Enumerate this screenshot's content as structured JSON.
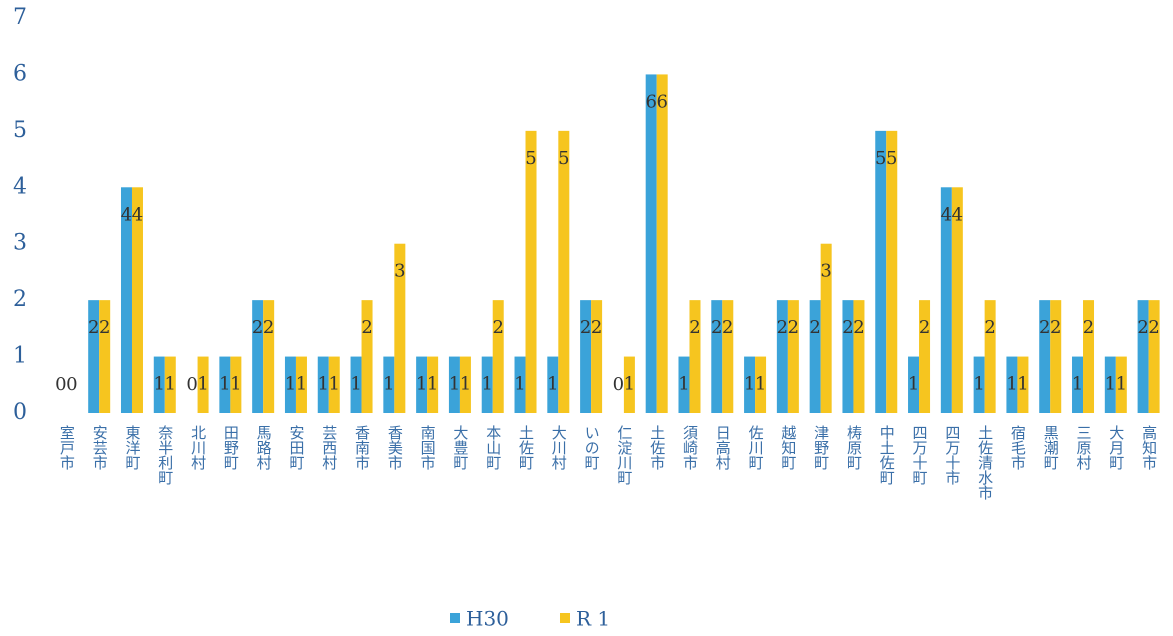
{
  "chart_data": {
    "type": "bar",
    "categories": [
      "室戸市",
      "安芸市",
      "東洋町",
      "奈半利町",
      "北川村",
      "田野町",
      "馬路村",
      "安田町",
      "芸西村",
      "香南市",
      "香美市",
      "南国市",
      "大豊町",
      "本山町",
      "土佐町",
      "大川村",
      "いの町",
      "仁淀川町",
      "土佐市",
      "須崎市",
      "日高村",
      "佐川町",
      "越知町",
      "津野町",
      "梼原町",
      "中土佐町",
      "四万十町",
      "四万十市",
      "土佐清水市",
      "宿毛市",
      "黒潮町",
      "三原村",
      "大月町",
      "高知市"
    ],
    "series": [
      {
        "name": "H30",
        "color": "#3ba3d9",
        "values": [
          0,
          2,
          4,
          1,
          0,
          1,
          2,
          1,
          1,
          1,
          1,
          1,
          1,
          1,
          1,
          1,
          2,
          0,
          6,
          1,
          2,
          1,
          2,
          2,
          2,
          5,
          1,
          4,
          1,
          1,
          2,
          1,
          1,
          2
        ]
      },
      {
        "name": "R 1",
        "color": "#f6c51f",
        "values": [
          0,
          2,
          4,
          1,
          1,
          1,
          2,
          1,
          1,
          2,
          3,
          1,
          1,
          2,
          5,
          5,
          2,
          1,
          6,
          2,
          2,
          1,
          2,
          3,
          2,
          5,
          2,
          4,
          2,
          1,
          2,
          2,
          1,
          2
        ]
      }
    ],
    "ylim": [
      0,
      7
    ],
    "yticks": [
      0,
      1,
      2,
      3,
      4,
      5,
      6,
      7
    ],
    "legend": "bottom",
    "data_labels": true
  }
}
